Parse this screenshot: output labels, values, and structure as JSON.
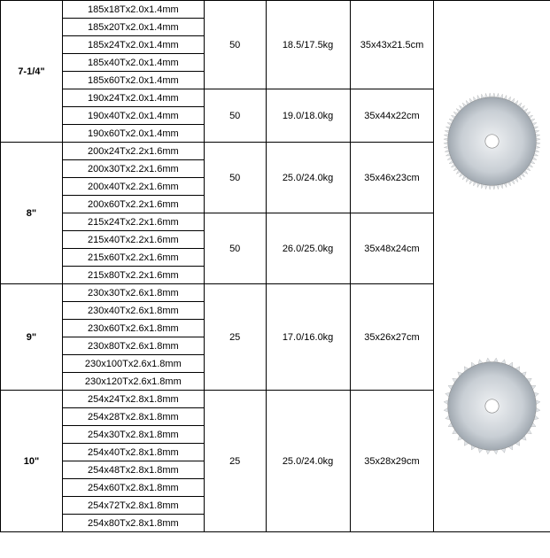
{
  "sizes": {
    "s7": "7-1/4\"",
    "s8": "8\"",
    "s9": "9\"",
    "s10": "10\""
  },
  "groups": {
    "g185": {
      "specs": [
        "185x18Tx2.0x1.4mm",
        "185x20Tx2.0x1.4mm",
        "185x24Tx2.0x1.4mm",
        "185x40Tx2.0x1.4mm",
        "185x60Tx2.0x1.4mm"
      ],
      "qty": "50",
      "weight": "18.5/17.5kg",
      "dims": "35x43x21.5cm"
    },
    "g190": {
      "specs": [
        "190x24Tx2.0x1.4mm",
        "190x40Tx2.0x1.4mm",
        "190x60Tx2.0x1.4mm"
      ],
      "qty": "50",
      "weight": "19.0/18.0kg",
      "dims": "35x44x22cm"
    },
    "g200": {
      "specs": [
        "200x24Tx2.2x1.6mm",
        "200x30Tx2.2x1.6mm",
        "200x40Tx2.2x1.6mm",
        "200x60Tx2.2x1.6mm"
      ],
      "qty": "50",
      "weight": "25.0/24.0kg",
      "dims": "35x46x23cm"
    },
    "g215": {
      "specs": [
        "215x24Tx2.2x1.6mm",
        "215x40Tx2.2x1.6mm",
        "215x60Tx2.2x1.6mm",
        "215x80Tx2.2x1.6mm"
      ],
      "qty": "50",
      "weight": "26.0/25.0kg",
      "dims": "35x48x24cm"
    },
    "g230": {
      "specs": [
        "230x30Tx2.6x1.8mm",
        "230x40Tx2.6x1.8mm",
        "230x60Tx2.6x1.8mm",
        "230x80Tx2.6x1.8mm",
        "230x100Tx2.6x1.8mm",
        "230x120Tx2.6x1.8mm"
      ],
      "qty": "25",
      "weight": "17.0/16.0kg",
      "dims": "35x26x27cm"
    },
    "g254": {
      "specs": [
        "254x24Tx2.8x1.8mm",
        "254x28Tx2.8x1.8mm",
        "254x30Tx2.8x1.8mm",
        "254x40Tx2.8x1.8mm",
        "254x48Tx2.8x1.8mm",
        "254x60Tx2.8x1.8mm",
        "254x72Tx2.8x1.8mm",
        "254x80Tx2.8x1.8mm"
      ],
      "qty": "25",
      "weight": "25.0/24.0kg",
      "dims": "35x28x29cm"
    }
  },
  "blade_style": {
    "body_fill": "#c8ced4",
    "tooth_fill": "#e0e4e8",
    "center_fill": "#ffffff",
    "outline": "#666666",
    "radius_outer": 55,
    "radius_inner": 8,
    "teeth_many": 72,
    "teeth_few": 36
  }
}
